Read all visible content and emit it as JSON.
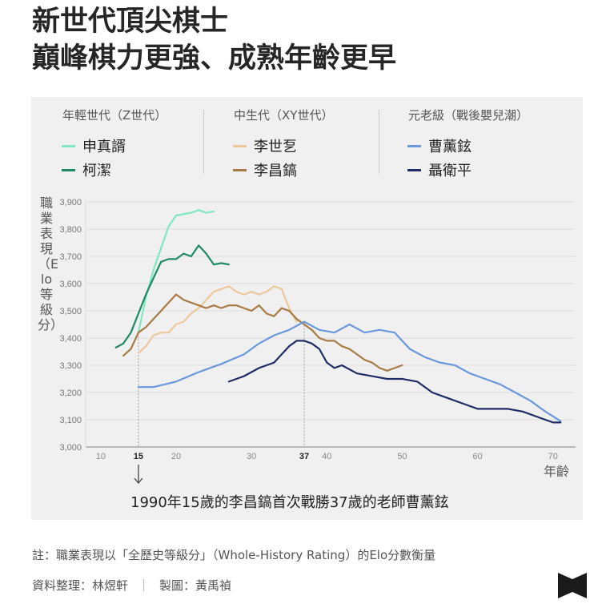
{
  "title_lines": [
    "新世代頂尖棋士",
    "巔峰棋力更強、成熟年齡更早"
  ],
  "legend": {
    "groups": [
      {
        "heading": "年輕世代（Z世代）",
        "players": [
          "申真諝",
          "柯潔"
        ]
      },
      {
        "heading": "中生代（XY世代）",
        "players": [
          "李世乭",
          "李昌鎬"
        ]
      },
      {
        "heading": "元老級（戰後嬰兒潮）",
        "players": [
          "曹薰鉉",
          "聶衛平"
        ]
      }
    ]
  },
  "annotation": "1990年15歲的李昌鎬首次戰勝37歲的老師曹薰鉉",
  "note": "註：職業表現以「全歷史等級分」（Whole-History Rating）的Elo分數衡量",
  "credits": {
    "data": "資料整理：林煜軒",
    "separator": "｜",
    "graphic": "製圖：黃禹禎"
  },
  "chart_data": {
    "type": "line",
    "xlabel": "年齡",
    "ylabel": "職業表現（Elo等級分）",
    "xlim": [
      8,
      73
    ],
    "ylim": [
      3000,
      3900
    ],
    "xticks": [
      10,
      15,
      20,
      30,
      37,
      40,
      50,
      60,
      70
    ],
    "xticks_bold": [
      15,
      37
    ],
    "yticks": [
      3000,
      3100,
      3200,
      3300,
      3400,
      3500,
      3600,
      3700,
      3800,
      3900
    ],
    "grid": true,
    "reference_lines_x": [
      15,
      37
    ],
    "series": [
      {
        "name": "申真諝",
        "color": "#7fe8c0",
        "x": [
          15,
          16,
          17,
          18,
          19,
          20,
          21,
          22,
          23,
          24,
          25
        ],
        "y": [
          3420,
          3550,
          3650,
          3730,
          3810,
          3850,
          3855,
          3860,
          3870,
          3860,
          3865
        ]
      },
      {
        "name": "柯潔",
        "color": "#1e8a63",
        "x": [
          12,
          13,
          14,
          15,
          16,
          17,
          18,
          19,
          20,
          21,
          22,
          23,
          24,
          25,
          26,
          27
        ],
        "y": [
          3365,
          3380,
          3420,
          3490,
          3560,
          3620,
          3680,
          3690,
          3690,
          3710,
          3700,
          3740,
          3710,
          3670,
          3675,
          3670
        ]
      },
      {
        "name": "李世乭",
        "color": "#eec79d",
        "x": [
          15,
          16,
          17,
          18,
          19,
          20,
          21,
          22,
          23,
          24,
          25,
          26,
          27,
          28,
          29,
          30,
          31,
          32,
          33,
          34,
          35,
          36
        ],
        "y": [
          3345,
          3370,
          3410,
          3420,
          3420,
          3450,
          3460,
          3490,
          3510,
          3540,
          3570,
          3580,
          3590,
          3570,
          3560,
          3570,
          3560,
          3570,
          3590,
          3580,
          3510,
          3460
        ]
      },
      {
        "name": "李昌鎬",
        "color": "#a87a45",
        "x": [
          13,
          14,
          15,
          16,
          17,
          18,
          19,
          20,
          21,
          22,
          23,
          24,
          25,
          26,
          27,
          28,
          29,
          30,
          31,
          32,
          33,
          34,
          35,
          36,
          37,
          38,
          39,
          40,
          41,
          42,
          43,
          44,
          45,
          46,
          47,
          48,
          49,
          50
        ],
        "y": [
          3335,
          3360,
          3420,
          3440,
          3470,
          3500,
          3530,
          3560,
          3540,
          3530,
          3520,
          3510,
          3520,
          3510,
          3520,
          3520,
          3510,
          3500,
          3520,
          3490,
          3480,
          3510,
          3500,
          3470,
          3450,
          3430,
          3400,
          3390,
          3390,
          3370,
          3360,
          3340,
          3320,
          3310,
          3290,
          3280,
          3290,
          3300
        ]
      },
      {
        "name": "曹薰鉉",
        "color": "#6a98dc",
        "x": [
          15,
          17,
          20,
          23,
          26,
          29,
          31,
          33,
          35,
          37,
          39,
          41,
          43,
          45,
          47,
          49,
          51,
          53,
          55,
          57,
          59,
          61,
          63,
          65,
          67,
          69,
          71
        ],
        "y": [
          3220,
          3220,
          3240,
          3275,
          3305,
          3340,
          3380,
          3410,
          3430,
          3460,
          3430,
          3420,
          3450,
          3420,
          3430,
          3420,
          3360,
          3330,
          3310,
          3300,
          3270,
          3250,
          3230,
          3200,
          3170,
          3130,
          3095
        ]
      },
      {
        "name": "聶衛平",
        "color": "#1f2c66",
        "x": [
          27,
          29,
          31,
          33,
          34,
          35,
          36,
          37,
          38,
          39,
          40,
          41,
          42,
          44,
          46,
          48,
          50,
          52,
          54,
          56,
          58,
          60,
          62,
          64,
          66,
          68,
          70,
          71
        ],
        "y": [
          3240,
          3260,
          3290,
          3310,
          3340,
          3370,
          3390,
          3390,
          3380,
          3360,
          3310,
          3290,
          3300,
          3270,
          3260,
          3250,
          3250,
          3240,
          3200,
          3180,
          3160,
          3140,
          3140,
          3140,
          3130,
          3110,
          3090,
          3090
        ]
      }
    ]
  }
}
